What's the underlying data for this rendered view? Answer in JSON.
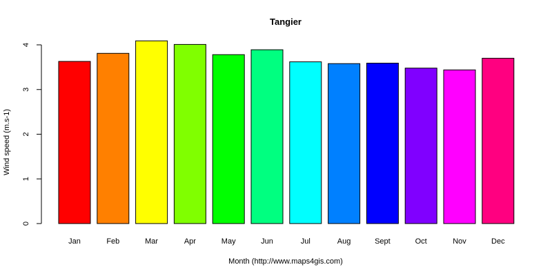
{
  "chart_data": {
    "type": "bar",
    "title": "Tangier",
    "xlabel": "Month (http://www.maps4gis.com)",
    "ylabel": "Wind speed (m.s-1)",
    "categories": [
      "Jan",
      "Feb",
      "Mar",
      "Apr",
      "May",
      "Jun",
      "Jul",
      "Aug",
      "Sept",
      "Oct",
      "Nov",
      "Dec"
    ],
    "values": [
      3.63,
      3.81,
      4.09,
      4.01,
      3.78,
      3.89,
      3.62,
      3.58,
      3.59,
      3.48,
      3.44,
      3.7
    ],
    "colors": [
      "#FF0000",
      "#FF8000",
      "#FFFF00",
      "#80FF00",
      "#00FF00",
      "#00FF80",
      "#00FFFF",
      "#0080FF",
      "#0000FF",
      "#8000FF",
      "#FF00FF",
      "#FF0080"
    ],
    "yticks": [
      "0",
      "1",
      "2",
      "3",
      "4"
    ],
    "ylim": [
      0,
      4.2
    ],
    "grid": false,
    "legend": "none"
  }
}
